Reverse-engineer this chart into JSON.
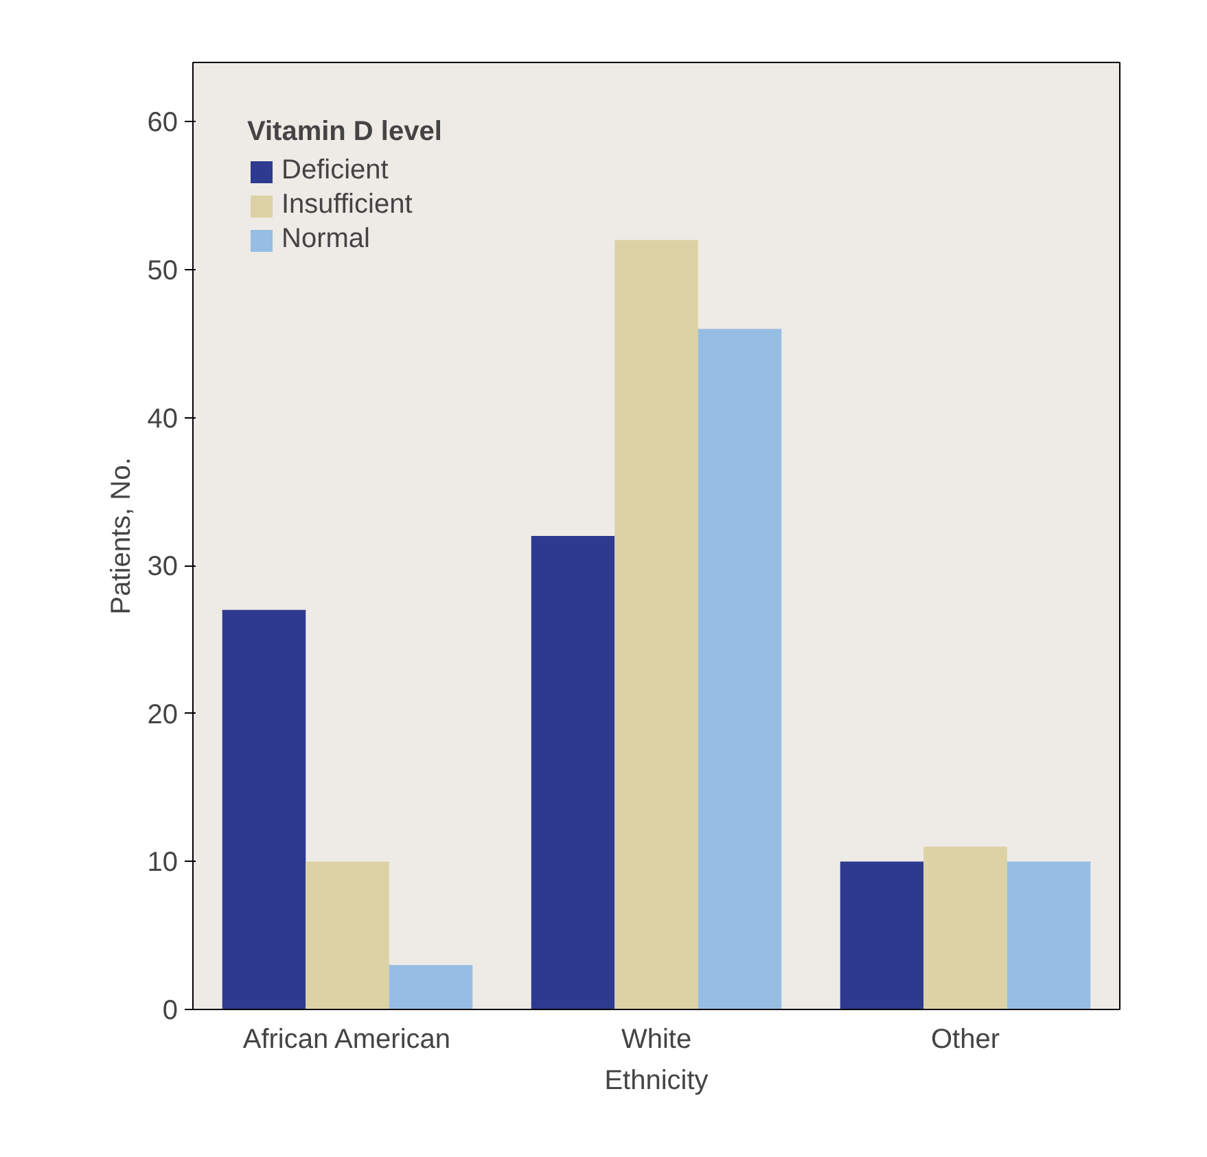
{
  "chart_data": {
    "type": "bar",
    "xlabel": "Ethnicity",
    "ylabel": "Patients, No.",
    "legend_title": "Vitamin D level",
    "categories": [
      "African American",
      "White",
      "Other"
    ],
    "series": [
      {
        "name": "Deficient",
        "color": "#2e3a8f",
        "values": [
          27,
          32,
          10
        ]
      },
      {
        "name": "Insufficient",
        "color": "#dcd2a5",
        "values": [
          10,
          52,
          11
        ]
      },
      {
        "name": "Normal",
        "color": "#96bde4",
        "values": [
          3,
          46,
          10
        ]
      }
    ],
    "ylim": [
      0,
      64
    ],
    "yticks": [
      0,
      10,
      20,
      30,
      40,
      50,
      60
    ],
    "grid": false,
    "legend": "top left"
  }
}
